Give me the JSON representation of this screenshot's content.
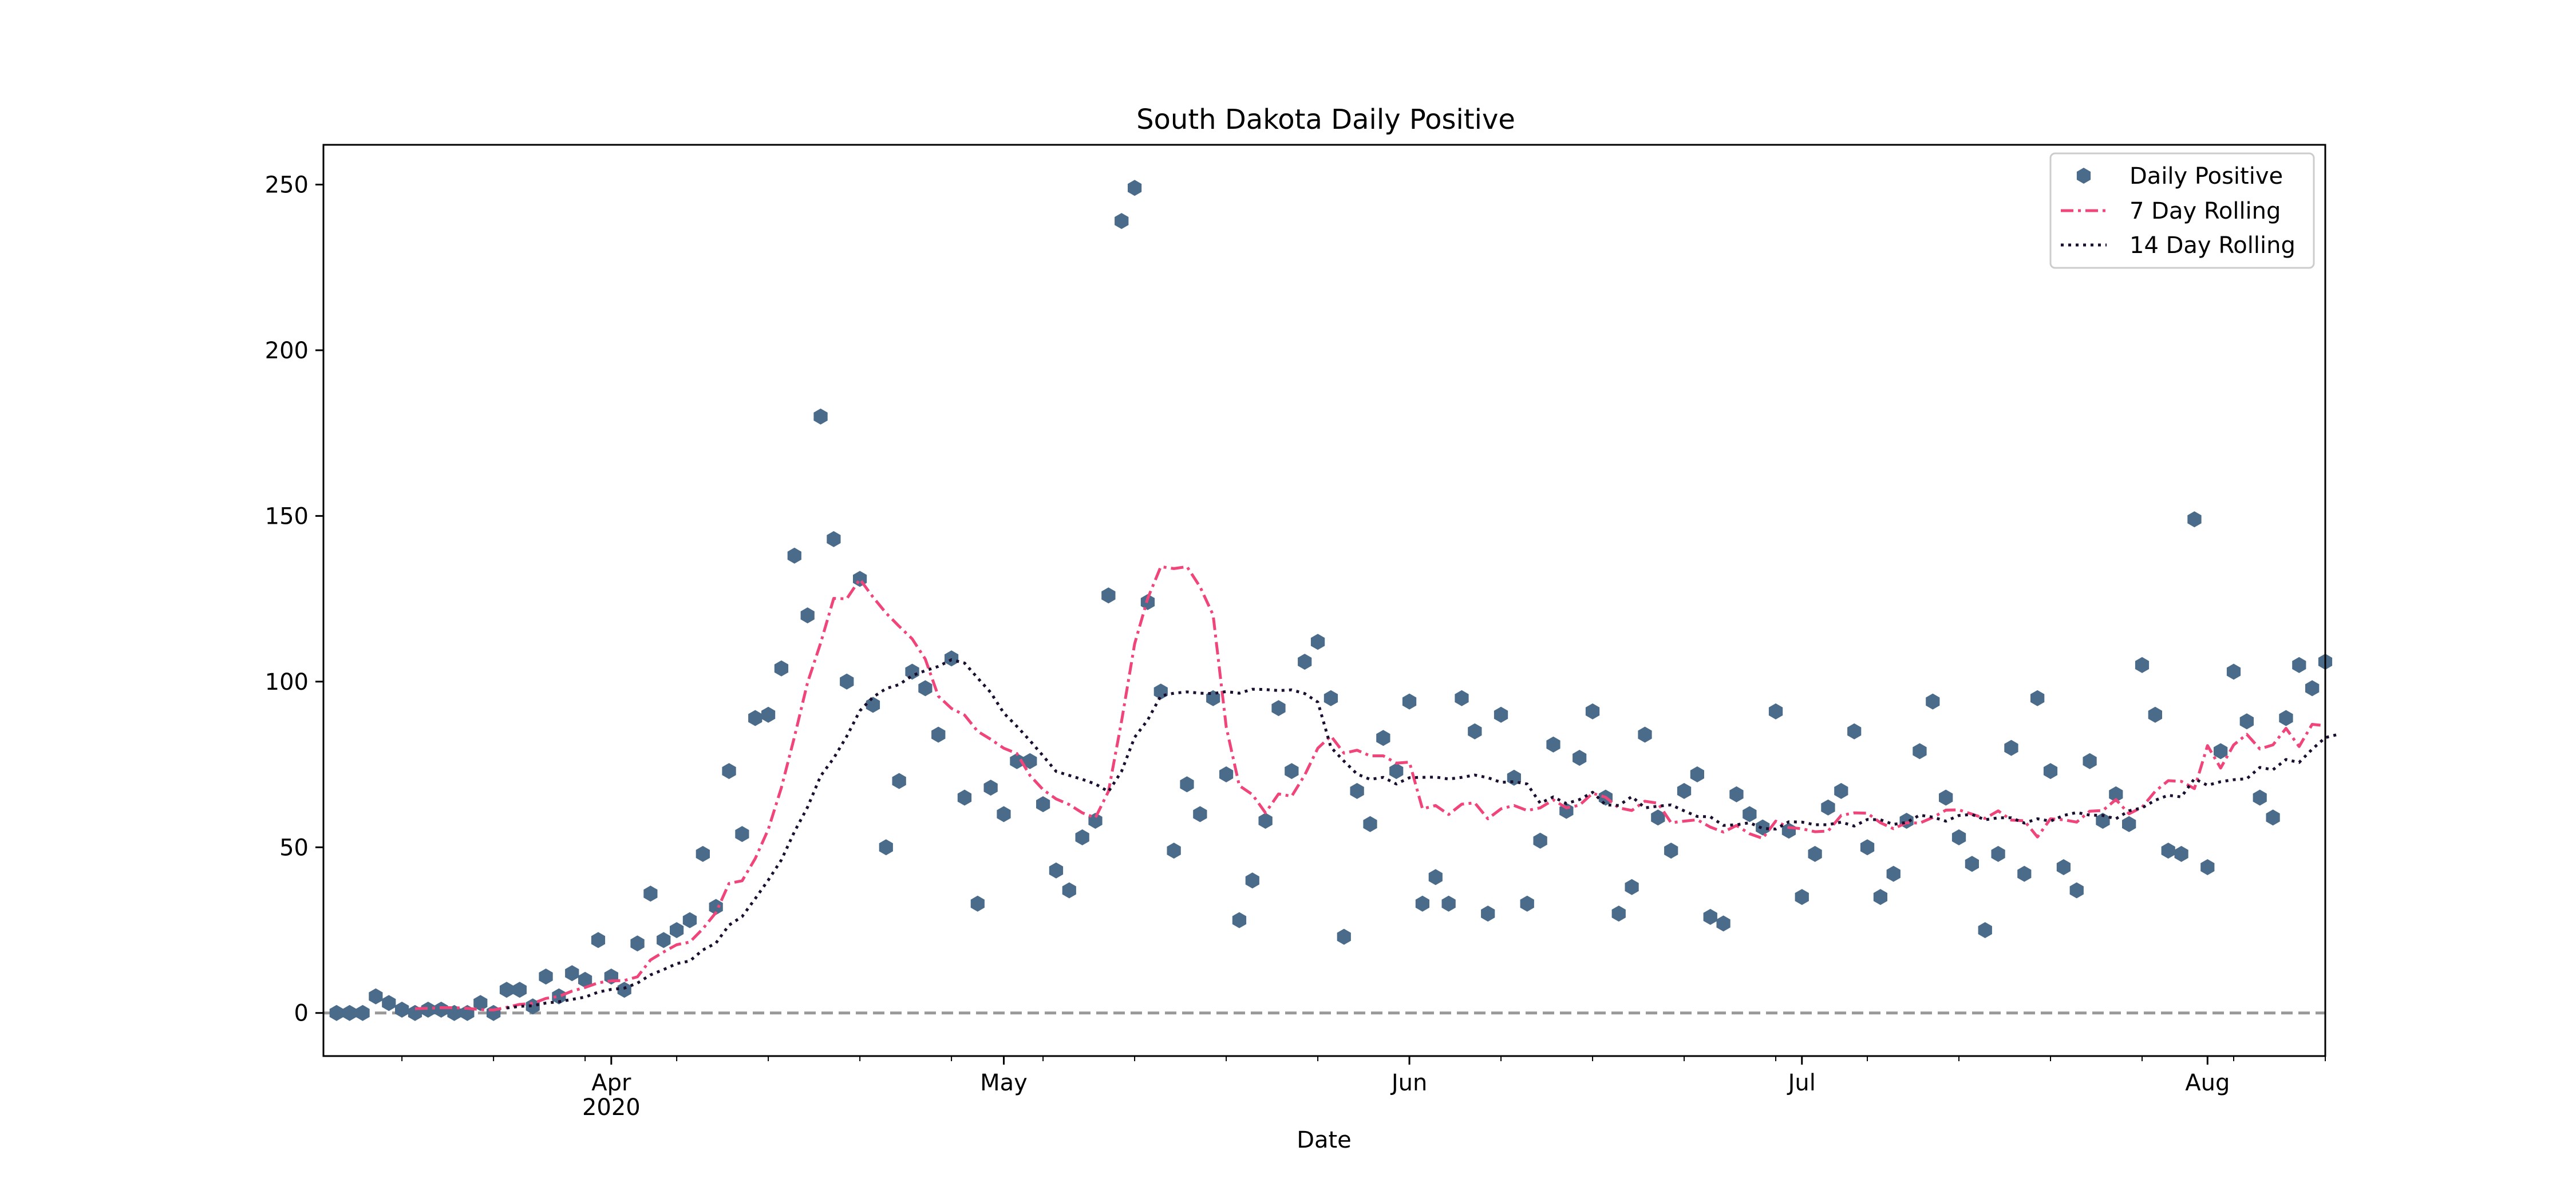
{
  "chart_data": {
    "type": "scatter",
    "title": "South Dakota Daily Positive",
    "xlabel": "Date",
    "ylabel": "",
    "x_start": "2020-03-11",
    "x_range": [
      "2020-03-10",
      "2020-08-10"
    ],
    "ylim": [
      -13,
      262
    ],
    "yticks": [
      0,
      50,
      100,
      150,
      200,
      250
    ],
    "xticks": [
      {
        "date": "2020-04-01",
        "label": "Apr",
        "sublabel": "2020"
      },
      {
        "date": "2020-05-01",
        "label": "May",
        "sublabel": ""
      },
      {
        "date": "2020-06-01",
        "label": "Jun",
        "sublabel": ""
      },
      {
        "date": "2020-07-01",
        "label": "Jul",
        "sublabel": ""
      },
      {
        "date": "2020-08-01",
        "label": "Aug",
        "sublabel": ""
      }
    ],
    "legend_position": "top-right",
    "grid": false,
    "zero_line": {
      "y": 0,
      "color": "#999999",
      "style": "dashed"
    },
    "series": [
      {
        "name": "Daily Positive",
        "kind": "scatter",
        "color": "#4a6b8a",
        "marker": "hexagon",
        "values": [
          0,
          0,
          0,
          5,
          3,
          1,
          0,
          1,
          1,
          0,
          0,
          3,
          0,
          7,
          7,
          2,
          11,
          5,
          12,
          10,
          22,
          11,
          7,
          21,
          36,
          22,
          25,
          28,
          48,
          32,
          73,
          54,
          89,
          90,
          104,
          138,
          120,
          180,
          143,
          100,
          131,
          93,
          50,
          70,
          103,
          98,
          84,
          107,
          65,
          33,
          68,
          60,
          76,
          76,
          63,
          43,
          37,
          53,
          58,
          126,
          239,
          249,
          124,
          97,
          49,
          69,
          60,
          95,
          72,
          28,
          40,
          58,
          92,
          73,
          106,
          112,
          95,
          23,
          67,
          57,
          83,
          73,
          94,
          33,
          41,
          33,
          95,
          85,
          30,
          90,
          71,
          33,
          52,
          81,
          61,
          77,
          91,
          65,
          30,
          38,
          84,
          59,
          49,
          67,
          72,
          29,
          27,
          66,
          60,
          56,
          91,
          55,
          35,
          48,
          62,
          67,
          85,
          50,
          35,
          42,
          58,
          79,
          94,
          65,
          53,
          45,
          25,
          48,
          80,
          42,
          95,
          73,
          44,
          37,
          76,
          58,
          66,
          57,
          105,
          90,
          49,
          48,
          149,
          44,
          79,
          103,
          88,
          65,
          59,
          89,
          105,
          98,
          106
        ]
      },
      {
        "name": "7 Day Rolling",
        "kind": "line",
        "color": "#f0457a",
        "style": "dashdot",
        "values": [
          null,
          null,
          null,
          null,
          null,
          null,
          1.3,
          1.4,
          1.6,
          1.6,
          1.4,
          1.0,
          0.9,
          1.7,
          2.6,
          2.9,
          4.4,
          5.0,
          6.6,
          7.7,
          9.1,
          9.7,
          9.8,
          10.9,
          16.0,
          18.4,
          20.6,
          21.4,
          25.4,
          30.3,
          39.1,
          39.9,
          46.6,
          55.4,
          68.0,
          83.3,
          99.7,
          111.6,
          125.1,
          125.0,
          130.9,
          125.5,
          120.7,
          116.7,
          112.9,
          106.8,
          95.6,
          91.9,
          89.9,
          85.0,
          82.6,
          79.9,
          78.3,
          71.7,
          67.4,
          64.6,
          62.9,
          60.4,
          58.9,
          66.9,
          88.0,
          111.4,
          125.1,
          134.7,
          134.1,
          134.7,
          128.6,
          120.1,
          86.3,
          68.6,
          65.9,
          60.4,
          66.1,
          65.4,
          71.8,
          79.9,
          83.6,
          78.4,
          79.3,
          77.6,
          77.6,
          75.4,
          75.7,
          61.6,
          62.6,
          59.9,
          63.0,
          63.4,
          58.6,
          61.6,
          62.6,
          61.1,
          61.9,
          64.3,
          61.9,
          62.7,
          66.3,
          65.1,
          61.9,
          61.1,
          63.9,
          63.3,
          57.4,
          57.9,
          58.3,
          56.1,
          54.6,
          56.6,
          54.1,
          52.7,
          57.9,
          56.0,
          55.6,
          54.7,
          54.9,
          59.6,
          60.4,
          60.3,
          57.4,
          55.6,
          57.4,
          57.3,
          59.0,
          61.2,
          61.3,
          60.0,
          58.7,
          61.0,
          58.2,
          58.0,
          53.1,
          58.6,
          58.3,
          57.6,
          60.9,
          61.1,
          64.4,
          60.1,
          62.1,
          66.9,
          70.1,
          69.9,
          67.7,
          80.7,
          73.9,
          80.9,
          84.1,
          79.7,
          80.9,
          85.9,
          80.4,
          87.1,
          86.7
        ]
      },
      {
        "name": "14 Day Rolling",
        "kind": "line",
        "color": "#1a0f2e",
        "style": "dotted",
        "values": [
          null,
          null,
          null,
          null,
          null,
          null,
          null,
          null,
          null,
          null,
          null,
          null,
          null,
          1.5,
          2.0,
          2.2,
          3.0,
          3.4,
          4.1,
          4.8,
          6.3,
          7.1,
          7.5,
          9.0,
          11.5,
          13.1,
          14.9,
          15.7,
          19.0,
          21.1,
          26.5,
          29.1,
          34.5,
          40.1,
          46.2,
          54.7,
          62.1,
          71.5,
          76.9,
          83.5,
          91.2,
          95.3,
          97.9,
          99.1,
          101.8,
          103.3,
          104.6,
          106.6,
          105.6,
          101.1,
          96.7,
          90.5,
          86.5,
          82.2,
          77.6,
          72.9,
          71.7,
          70.5,
          69.1,
          66.8,
          72.9,
          83.2,
          88.4,
          95.7,
          96.5,
          96.9,
          96.5,
          96.4,
          97.0,
          96.5,
          97.7,
          97.6,
          97.3,
          97.5,
          96.4,
          93.8,
          80.2,
          76.0,
          72.1,
          70.5,
          71.1,
          69.1,
          71.0,
          71.1,
          71.2,
          70.6,
          71.1,
          71.8,
          71.0,
          69.6,
          69.8,
          69.1,
          63.3,
          65.2,
          63.2,
          64.4,
          66.6,
          62.8,
          62.6,
          65.3,
          61.9,
          62.4,
          62.8,
          61.0,
          59.3,
          59.2,
          56.6,
          56.8,
          57.4,
          55.7,
          55.5,
          57.7,
          57.6,
          56.8,
          56.8,
          57.6,
          56.4,
          58.4,
          58.3,
          56.9,
          57.5,
          59.7,
          59.1,
          57.9,
          59.6,
          59.9,
          58.3,
          58.9,
          58.9,
          57.3,
          58.6,
          57.9,
          59.6,
          60.5,
          59.7,
          59.6,
          58.6,
          61.0,
          61.9,
          64.2,
          65.7,
          65.2,
          70.7,
          68.7,
          69.8,
          70.4,
          70.7,
          74.1,
          73.4,
          76.5,
          75.6,
          79.6,
          83.1,
          84.1
        ]
      }
    ]
  }
}
